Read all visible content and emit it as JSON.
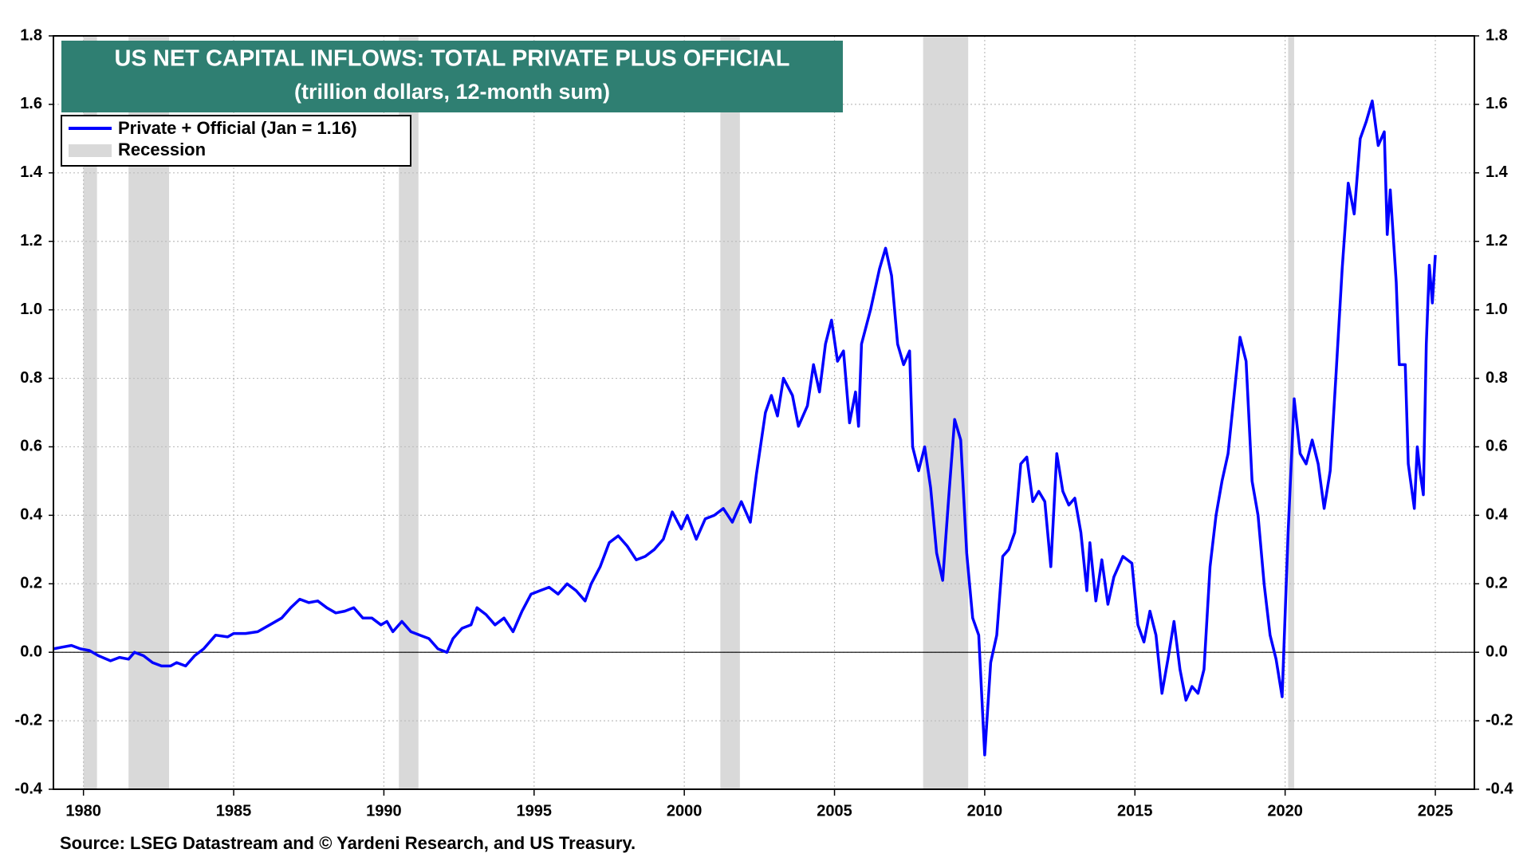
{
  "chart_data": {
    "type": "line",
    "title": "US NET CAPITAL INFLOWS: TOTAL PRIVATE PLUS OFFICIAL",
    "subtitle": "(trillion dollars, 12-month sum)",
    "source": "Source: LSEG Datastream and © Yardeni Research, and US Treasury.",
    "recession_label": "Recession",
    "recession_color": "#d9d9d9",
    "recessions": [
      [
        1980.0,
        1980.45
      ],
      [
        1981.5,
        1982.85
      ],
      [
        1990.5,
        1991.15
      ],
      [
        2001.2,
        2001.85
      ],
      [
        2007.95,
        2009.45
      ],
      [
        2020.1,
        2020.3
      ]
    ],
    "grid": true,
    "xlim": [
      1979.0,
      2026.3
    ],
    "xticks": [
      1980,
      1985,
      1990,
      1995,
      2000,
      2005,
      2010,
      2015,
      2020,
      2025
    ],
    "ylim": [
      -0.4,
      1.8
    ],
    "yticks": [
      -0.4,
      -0.2,
      {
        "value": 0,
        "label": "0.0"
      },
      0.2,
      0.4,
      0.6,
      0.8,
      {
        "value": 1,
        "label": "1.0"
      },
      1.2,
      1.4,
      1.6,
      1.8
    ],
    "x": [
      1979.0,
      1979.3,
      1979.6,
      1979.9,
      1980.2,
      1980.5,
      1980.9,
      1981.2,
      1981.5,
      1981.7,
      1982.0,
      1982.3,
      1982.6,
      1982.9,
      1983.1,
      1983.4,
      1983.7,
      1984.0,
      1984.4,
      1984.8,
      1985.0,
      1985.4,
      1985.8,
      1986.2,
      1986.6,
      1986.9,
      1987.2,
      1987.5,
      1987.8,
      1988.1,
      1988.4,
      1988.7,
      1989.0,
      1989.3,
      1989.6,
      1989.9,
      1990.1,
      1990.3,
      1990.6,
      1990.9,
      1991.2,
      1991.5,
      1991.8,
      1992.1,
      1992.3,
      1992.6,
      1992.9,
      1993.1,
      1993.4,
      1993.7,
      1994.0,
      1994.3,
      1994.6,
      1994.9,
      1995.2,
      1995.5,
      1995.8,
      1996.1,
      1996.4,
      1996.7,
      1996.9,
      1997.2,
      1997.5,
      1997.8,
      1998.1,
      1998.4,
      1998.7,
      1999.0,
      1999.3,
      1999.6,
      1999.9,
      2000.1,
      2000.4,
      2000.7,
      2001.0,
      2001.3,
      2001.6,
      2001.9,
      2002.2,
      2002.4,
      2002.7,
      2002.9,
      2003.1,
      2003.3,
      2003.6,
      2003.8,
      2004.1,
      2004.3,
      2004.5,
      2004.7,
      2004.9,
      2005.1,
      2005.3,
      2005.5,
      2005.7,
      2005.8,
      2005.9,
      2006.2,
      2006.5,
      2006.7,
      2006.9,
      2007.1,
      2007.3,
      2007.5,
      2007.6,
      2007.8,
      2008.0,
      2008.2,
      2008.4,
      2008.6,
      2008.8,
      2009.0,
      2009.2,
      2009.4,
      2009.6,
      2009.8,
      2010.0,
      2010.2,
      2010.4,
      2010.6,
      2010.8,
      2011.0,
      2011.2,
      2011.4,
      2011.6,
      2011.8,
      2012.0,
      2012.2,
      2012.4,
      2012.6,
      2012.8,
      2013.0,
      2013.2,
      2013.4,
      2013.5,
      2013.7,
      2013.9,
      2014.1,
      2014.3,
      2014.6,
      2014.9,
      2015.1,
      2015.3,
      2015.5,
      2015.7,
      2015.9,
      2016.1,
      2016.3,
      2016.5,
      2016.7,
      2016.9,
      2017.1,
      2017.3,
      2017.5,
      2017.7,
      2017.9,
      2018.1,
      2018.3,
      2018.5,
      2018.7,
      2018.9,
      2019.1,
      2019.3,
      2019.5,
      2019.7,
      2019.9,
      2020.1,
      2020.3,
      2020.5,
      2020.7,
      2020.9,
      2021.1,
      2021.3,
      2021.5,
      2021.7,
      2021.9,
      2022.1,
      2022.3,
      2022.5,
      2022.7,
      2022.9,
      2023.1,
      2023.3,
      2023.4,
      2023.5,
      2023.7,
      2023.8,
      2024.0,
      2024.1,
      2024.3,
      2024.4,
      2024.5,
      2024.6,
      2024.7,
      2024.8,
      2024.9,
      2025.0
    ],
    "series": [
      {
        "name": "Private + Official (Jan = 1.16)",
        "color": "#0000ff",
        "values": [
          0.01,
          0.015,
          0.02,
          0.01,
          0.005,
          -0.01,
          -0.025,
          -0.015,
          -0.02,
          0.0,
          -0.01,
          -0.03,
          -0.04,
          -0.04,
          -0.03,
          -0.04,
          -0.01,
          0.01,
          0.05,
          0.045,
          0.055,
          0.055,
          0.06,
          0.08,
          0.1,
          0.13,
          0.155,
          0.145,
          0.15,
          0.13,
          0.115,
          0.12,
          0.13,
          0.1,
          0.1,
          0.08,
          0.09,
          0.06,
          0.09,
          0.06,
          0.05,
          0.04,
          0.01,
          0.0,
          0.04,
          0.07,
          0.08,
          0.13,
          0.11,
          0.08,
          0.1,
          0.06,
          0.12,
          0.17,
          0.18,
          0.19,
          0.17,
          0.2,
          0.18,
          0.15,
          0.2,
          0.25,
          0.32,
          0.34,
          0.31,
          0.27,
          0.28,
          0.3,
          0.33,
          0.41,
          0.36,
          0.4,
          0.33,
          0.39,
          0.4,
          0.42,
          0.38,
          0.44,
          0.38,
          0.52,
          0.7,
          0.75,
          0.69,
          0.8,
          0.75,
          0.66,
          0.72,
          0.84,
          0.76,
          0.9,
          0.97,
          0.85,
          0.88,
          0.67,
          0.76,
          0.66,
          0.9,
          1.0,
          1.12,
          1.18,
          1.1,
          0.9,
          0.84,
          0.88,
          0.6,
          0.53,
          0.6,
          0.48,
          0.29,
          0.21,
          0.45,
          0.68,
          0.62,
          0.29,
          0.1,
          0.05,
          -0.3,
          -0.03,
          0.05,
          0.28,
          0.3,
          0.35,
          0.55,
          0.57,
          0.44,
          0.47,
          0.44,
          0.25,
          0.58,
          0.47,
          0.43,
          0.45,
          0.35,
          0.18,
          0.32,
          0.15,
          0.27,
          0.14,
          0.22,
          0.28,
          0.26,
          0.08,
          0.03,
          0.12,
          0.05,
          -0.12,
          -0.02,
          0.09,
          -0.05,
          -0.14,
          -0.1,
          -0.12,
          -0.05,
          0.25,
          0.4,
          0.5,
          0.58,
          0.75,
          0.92,
          0.85,
          0.5,
          0.4,
          0.2,
          0.05,
          -0.02,
          -0.13,
          0.35,
          0.74,
          0.58,
          0.55,
          0.62,
          0.55,
          0.42,
          0.53,
          0.82,
          1.12,
          1.37,
          1.28,
          1.5,
          1.55,
          1.61,
          1.48,
          1.52,
          1.22,
          1.35,
          1.08,
          0.84,
          0.84,
          0.55,
          0.42,
          0.6,
          0.52,
          0.46,
          0.9,
          1.13,
          1.02,
          1.16
        ]
      }
    ]
  }
}
